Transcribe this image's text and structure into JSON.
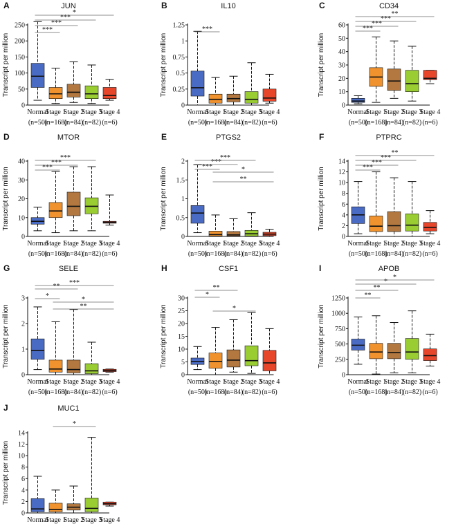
{
  "chart_data": {
    "type": "boxplot",
    "y_label": "Transcript per million",
    "categories": [
      "Normal",
      "Stage 1",
      "Stage 2",
      "Stage 3",
      "Stage 4"
    ],
    "sample_sizes": [
      "(n=50)",
      "(n=168)",
      "(n=84)",
      "(n=82)",
      "(n=6)"
    ],
    "colors": [
      "#4a6bc4",
      "#f0922e",
      "#b37840",
      "#9acd32",
      "#e8462a"
    ],
    "panels": [
      {
        "id": "A",
        "title": "JUN",
        "ylim": [
          0,
          250
        ],
        "ticks": [
          "0",
          "50",
          "100",
          "150",
          "200",
          "250"
        ],
        "tick_values": [
          0,
          50,
          100,
          150,
          200,
          250
        ],
        "boxes": [
          {
            "min": 15,
            "q1": 55,
            "med": 90,
            "q3": 130,
            "max": 260
          },
          {
            "min": 5,
            "q1": 20,
            "med": 35,
            "q3": 55,
            "max": 115
          },
          {
            "min": 8,
            "q1": 25,
            "med": 40,
            "q3": 65,
            "max": 135
          },
          {
            "min": 5,
            "q1": 20,
            "med": 35,
            "q3": 60,
            "max": 125
          },
          {
            "min": 15,
            "q1": 20,
            "med": 30,
            "q3": 55,
            "max": 80
          }
        ],
        "sig": [
          {
            "from": 0,
            "to": 1,
            "label": "***"
          },
          {
            "from": 0,
            "to": 2,
            "label": "***"
          },
          {
            "from": 0,
            "to": 3,
            "label": "***"
          },
          {
            "from": 0,
            "to": 4,
            "label": "*"
          }
        ]
      },
      {
        "id": "B",
        "title": "IL10",
        "ylim": [
          0,
          1.25
        ],
        "ticks": [
          "0",
          "0.25",
          "0.5",
          "0.75",
          "1",
          "1.25"
        ],
        "tick_values": [
          0,
          0.25,
          0.5,
          0.75,
          1,
          1.25
        ],
        "boxes": [
          {
            "min": 0,
            "q1": 0.14,
            "med": 0.27,
            "q3": 0.53,
            "max": 1.15
          },
          {
            "min": 0,
            "q1": 0.03,
            "med": 0.09,
            "q3": 0.17,
            "max": 0.43
          },
          {
            "min": 0,
            "q1": 0.05,
            "med": 0.1,
            "q3": 0.17,
            "max": 0.45
          },
          {
            "min": 0,
            "q1": 0.03,
            "med": 0.09,
            "q3": 0.21,
            "max": 0.66
          },
          {
            "min": 0.03,
            "q1": 0.06,
            "med": 0.11,
            "q3": 0.25,
            "max": 0.48
          }
        ],
        "sig": [
          {
            "from": 0,
            "to": 1,
            "label": "***"
          }
        ]
      },
      {
        "id": "C",
        "title": "CD34",
        "ylim": [
          0,
          60
        ],
        "ticks": [
          "0",
          "10",
          "20",
          "30",
          "40",
          "50",
          "60"
        ],
        "tick_values": [
          0,
          10,
          20,
          30,
          40,
          50,
          60
        ],
        "boxes": [
          {
            "min": 1,
            "q1": 2,
            "med": 3,
            "q3": 5,
            "max": 7
          },
          {
            "min": 2,
            "q1": 14,
            "med": 21,
            "q3": 28,
            "max": 51
          },
          {
            "min": 5,
            "q1": 11,
            "med": 18,
            "q3": 27,
            "max": 48
          },
          {
            "min": 3,
            "q1": 10,
            "med": 16,
            "q3": 26,
            "max": 44
          },
          {
            "min": 16,
            "q1": 19,
            "med": 20,
            "q3": 26,
            "max": 26
          }
        ],
        "sig": [
          {
            "from": 0,
            "to": 1,
            "label": "***"
          },
          {
            "from": 0,
            "to": 2,
            "label": "***"
          },
          {
            "from": 0,
            "to": 3,
            "label": "***"
          },
          {
            "from": 0,
            "to": 4,
            "label": "**"
          }
        ]
      },
      {
        "id": "D",
        "title": "MTOR",
        "ylim": [
          0,
          40
        ],
        "ticks": [
          "0",
          "10",
          "20",
          "30",
          "40"
        ],
        "tick_values": [
          0,
          10,
          20,
          30,
          40
        ],
        "boxes": [
          {
            "min": 3,
            "q1": 6.5,
            "med": 8,
            "q3": 10,
            "max": 15.5
          },
          {
            "min": 2,
            "q1": 10,
            "med": 13.5,
            "q3": 18,
            "max": 34.5
          },
          {
            "min": 3,
            "q1": 11,
            "med": 16,
            "q3": 23.5,
            "max": 37
          },
          {
            "min": 3,
            "q1": 12,
            "med": 16,
            "q3": 20.5,
            "max": 37
          },
          {
            "min": 6,
            "q1": 7,
            "med": 7.5,
            "q3": 8,
            "max": 22
          }
        ],
        "sig": [
          {
            "from": 0,
            "to": 1,
            "label": "***"
          },
          {
            "from": 0,
            "to": 2,
            "label": "***"
          },
          {
            "from": 0,
            "to": 3,
            "label": "***"
          }
        ]
      },
      {
        "id": "E",
        "title": "PTGS2",
        "ylim": [
          0,
          2
        ],
        "ticks": [
          "0",
          "0.5",
          "1",
          "1.5",
          "2"
        ],
        "tick_values": [
          0,
          0.5,
          1,
          1.5,
          2
        ],
        "boxes": [
          {
            "min": 0.1,
            "q1": 0.35,
            "med": 0.62,
            "q3": 0.82,
            "max": 1.9
          },
          {
            "min": 0,
            "q1": 0.01,
            "med": 0.05,
            "q3": 0.14,
            "max": 0.57
          },
          {
            "min": 0,
            "q1": 0.01,
            "med": 0.04,
            "q3": 0.13,
            "max": 0.47
          },
          {
            "min": 0,
            "q1": 0.01,
            "med": 0.07,
            "q3": 0.16,
            "max": 0.63
          },
          {
            "min": 0,
            "q1": 0.02,
            "med": 0.06,
            "q3": 0.11,
            "max": 0.19
          }
        ],
        "sig": [
          {
            "from": 0,
            "to": 1,
            "label": "***"
          },
          {
            "from": 0,
            "to": 2,
            "label": "***"
          },
          {
            "from": 0,
            "to": 3,
            "label": "***"
          },
          {
            "from": 1,
            "to": 4,
            "label": "*"
          },
          {
            "from": 1,
            "to": 4,
            "label": "**"
          }
        ]
      },
      {
        "id": "F",
        "title": "PTPRC",
        "ylim": [
          0,
          14
        ],
        "ticks": [
          "0",
          "2",
          "4",
          "6",
          "8",
          "10",
          "12",
          "14"
        ],
        "tick_values": [
          0,
          2,
          4,
          6,
          8,
          10,
          12,
          14
        ],
        "boxes": [
          {
            "min": 0.5,
            "q1": 2.4,
            "med": 4,
            "q3": 5.5,
            "max": 10.2
          },
          {
            "min": 0,
            "q1": 0.9,
            "med": 1.9,
            "q3": 3.8,
            "max": 12
          },
          {
            "min": 0,
            "q1": 0.9,
            "med": 2,
            "q3": 4.6,
            "max": 10.9
          },
          {
            "min": 0,
            "q1": 1,
            "med": 2.1,
            "q3": 4.2,
            "max": 10.2
          },
          {
            "min": 0.5,
            "q1": 1,
            "med": 1.7,
            "q3": 2.6,
            "max": 4.8
          }
        ],
        "sig": [
          {
            "from": 0,
            "to": 1,
            "label": "***"
          },
          {
            "from": 0,
            "to": 2,
            "label": "***"
          },
          {
            "from": 0,
            "to": 3,
            "label": "***"
          },
          {
            "from": 0,
            "to": 4,
            "label": "**"
          }
        ]
      },
      {
        "id": "G",
        "title": "SELE",
        "ylim": [
          0,
          3
        ],
        "ticks": [
          "0",
          "1",
          "2",
          "3"
        ],
        "tick_values": [
          0,
          1,
          2,
          3
        ],
        "boxes": [
          {
            "min": 0.2,
            "q1": 0.6,
            "med": 0.95,
            "q3": 1.4,
            "max": 2.65
          },
          {
            "min": 0,
            "q1": 0.1,
            "med": 0.22,
            "q3": 0.57,
            "max": 2.07
          },
          {
            "min": 0,
            "q1": 0.07,
            "med": 0.2,
            "q3": 0.57,
            "max": 2.55
          },
          {
            "min": 0,
            "q1": 0.04,
            "med": 0.15,
            "q3": 0.43,
            "max": 1.27
          },
          {
            "min": 0.1,
            "q1": 0.12,
            "med": 0.16,
            "q3": 0.21,
            "max": 0.22
          }
        ],
        "sig": [
          {
            "from": 0,
            "to": 1,
            "label": "*"
          },
          {
            "from": 0,
            "to": 2,
            "label": "**"
          },
          {
            "from": 0,
            "to": 4,
            "label": "***"
          },
          {
            "from": 1,
            "to": 4,
            "label": "*"
          },
          {
            "from": 1,
            "to": 4,
            "label": "**"
          }
        ]
      },
      {
        "id": "H",
        "title": "CSF1",
        "ylim": [
          0,
          30
        ],
        "ticks": [
          "0",
          "5",
          "10",
          "15",
          "20",
          "25",
          "30"
        ],
        "tick_values": [
          0,
          5,
          10,
          15,
          20,
          25,
          30
        ],
        "boxes": [
          {
            "min": 2,
            "q1": 4,
            "med": 5.2,
            "q3": 6.5,
            "max": 11
          },
          {
            "min": 0,
            "q1": 2.5,
            "med": 5.2,
            "q3": 8.5,
            "max": 18.5
          },
          {
            "min": 1,
            "q1": 3,
            "med": 5.7,
            "q3": 9.7,
            "max": 21.5
          },
          {
            "min": 0.5,
            "q1": 3.5,
            "med": 5.5,
            "q3": 11.3,
            "max": 24.3
          },
          {
            "min": 0,
            "q1": 1.5,
            "med": 4.6,
            "q3": 9.5,
            "max": 18
          }
        ],
        "sig": [
          {
            "from": 0,
            "to": 1,
            "label": "*"
          },
          {
            "from": 0,
            "to": 2,
            "label": "**"
          },
          {
            "from": 1,
            "to": 3,
            "label": "*"
          }
        ]
      },
      {
        "id": "I",
        "title": "APOB",
        "ylim": [
          0,
          1250
        ],
        "ticks": [
          "0",
          "250",
          "500",
          "750",
          "1000",
          "1250"
        ],
        "tick_values": [
          0,
          250,
          500,
          750,
          1000,
          1250
        ],
        "boxes": [
          {
            "min": 170,
            "q1": 400,
            "med": 480,
            "q3": 580,
            "max": 940
          },
          {
            "min": 10,
            "q1": 260,
            "med": 370,
            "q3": 510,
            "max": 960
          },
          {
            "min": 30,
            "q1": 260,
            "med": 360,
            "q3": 510,
            "max": 850
          },
          {
            "min": 30,
            "q1": 250,
            "med": 370,
            "q3": 590,
            "max": 1040
          },
          {
            "min": 140,
            "q1": 230,
            "med": 310,
            "q3": 420,
            "max": 660
          }
        ],
        "sig": [
          {
            "from": 0,
            "to": 1,
            "label": "**"
          },
          {
            "from": 0,
            "to": 2,
            "label": "**"
          },
          {
            "from": 0,
            "to": 3,
            "label": "*"
          },
          {
            "from": 0,
            "to": 4,
            "label": "*"
          }
        ]
      },
      {
        "id": "J",
        "title": "MUC1",
        "ylim": [
          0,
          14
        ],
        "ticks": [
          "0",
          "2",
          "4",
          "6",
          "8",
          "10",
          "12",
          "14"
        ],
        "tick_values": [
          0,
          2,
          4,
          6,
          8,
          10,
          12,
          14
        ],
        "boxes": [
          {
            "min": 0,
            "q1": 0.2,
            "med": 0.7,
            "q3": 2.5,
            "max": 6.4
          },
          {
            "min": 0,
            "q1": 0.2,
            "med": 0.6,
            "q3": 1.7,
            "max": 4
          },
          {
            "min": 0,
            "q1": 0.5,
            "med": 1,
            "q3": 1.6,
            "max": 4.7
          },
          {
            "min": 0,
            "q1": 0.2,
            "med": 0.8,
            "q3": 2.6,
            "max": 13.2
          },
          {
            "min": 1.2,
            "q1": 1.4,
            "med": 1.6,
            "q3": 1.9,
            "max": 1.9
          }
        ],
        "sig": [
          {
            "from": 1,
            "to": 3,
            "label": "*"
          }
        ]
      }
    ]
  }
}
